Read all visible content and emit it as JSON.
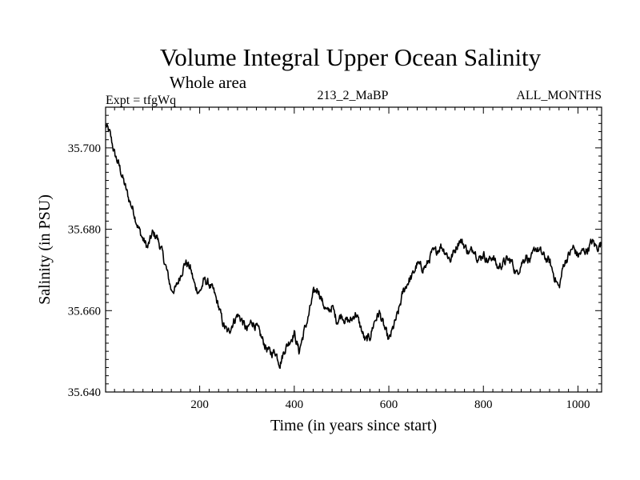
{
  "chart_data": {
    "type": "line",
    "title": "Volume Integral Upper Ocean Salinity",
    "subtitle": "Whole area",
    "expt_label": "Expt = tfgWq",
    "run_label": "213_2_MaBP",
    "months_label": "ALL_MONTHS",
    "xlabel": "Time (in years since start)",
    "ylabel": "Salinity (in PSU)",
    "xlim": [
      1,
      1050
    ],
    "ylim": [
      35.64,
      35.71
    ],
    "xticks": [
      {
        "value": 200,
        "label": "200"
      },
      {
        "value": 400,
        "label": "400"
      },
      {
        "value": 600,
        "label": "600"
      },
      {
        "value": 800,
        "label": "800"
      },
      {
        "value": 1000,
        "label": "1000"
      }
    ],
    "yticks": [
      {
        "value": 35.64,
        "label": "35.640"
      },
      {
        "value": 35.66,
        "label": "35.660"
      },
      {
        "value": 35.68,
        "label": "35.680"
      },
      {
        "value": 35.7,
        "label": "35.700"
      }
    ],
    "line_color": "#000000",
    "series": [
      {
        "name": "Salinity",
        "x": [
          1,
          10,
          20,
          30,
          40,
          50,
          60,
          70,
          80,
          90,
          100,
          110,
          120,
          130,
          140,
          150,
          160,
          170,
          180,
          190,
          200,
          210,
          220,
          230,
          240,
          250,
          260,
          270,
          280,
          290,
          300,
          310,
          320,
          330,
          340,
          350,
          360,
          370,
          380,
          390,
          400,
          410,
          420,
          430,
          440,
          450,
          460,
          470,
          480,
          490,
          500,
          510,
          520,
          530,
          540,
          550,
          560,
          570,
          580,
          590,
          600,
          610,
          620,
          630,
          640,
          650,
          660,
          670,
          680,
          690,
          700,
          710,
          720,
          730,
          740,
          750,
          760,
          770,
          780,
          790,
          800,
          810,
          820,
          830,
          840,
          850,
          860,
          870,
          880,
          890,
          900,
          910,
          920,
          930,
          940,
          950,
          960,
          970,
          980,
          990,
          1000,
          1010,
          1020,
          1030,
          1040,
          1050
        ],
        "values": [
          35.7055,
          35.7035,
          35.6985,
          35.6955,
          35.6915,
          35.6875,
          35.6845,
          35.6805,
          35.6775,
          35.6755,
          35.679,
          35.678,
          35.6745,
          35.67,
          35.665,
          35.6655,
          35.669,
          35.672,
          35.6705,
          35.666,
          35.6645,
          35.6675,
          35.6665,
          35.6645,
          35.661,
          35.6565,
          35.6545,
          35.657,
          35.659,
          35.6575,
          35.655,
          35.6575,
          35.656,
          35.6535,
          35.651,
          35.6495,
          35.65,
          35.647,
          35.6505,
          35.6525,
          35.6545,
          35.65,
          35.6545,
          35.6585,
          35.664,
          35.6655,
          35.662,
          35.6595,
          35.661,
          35.6575,
          35.659,
          35.6575,
          35.6575,
          35.6595,
          35.656,
          35.6525,
          35.6535,
          35.6575,
          35.6595,
          35.656,
          35.6525,
          35.656,
          35.6595,
          35.6645,
          35.667,
          35.6685,
          35.6715,
          35.6705,
          35.671,
          35.674,
          35.6745,
          35.676,
          35.6745,
          35.6725,
          35.675,
          35.6775,
          35.676,
          35.674,
          35.6755,
          35.6725,
          35.674,
          35.672,
          35.6735,
          35.6705,
          35.6715,
          35.6725,
          35.672,
          35.669,
          35.6715,
          35.6735,
          35.672,
          35.6755,
          35.6745,
          35.673,
          35.672,
          35.6685,
          35.6655,
          35.6715,
          35.6735,
          35.6755,
          35.6735,
          35.6745,
          35.675,
          35.677,
          35.6755,
          35.6765
        ]
      }
    ]
  }
}
